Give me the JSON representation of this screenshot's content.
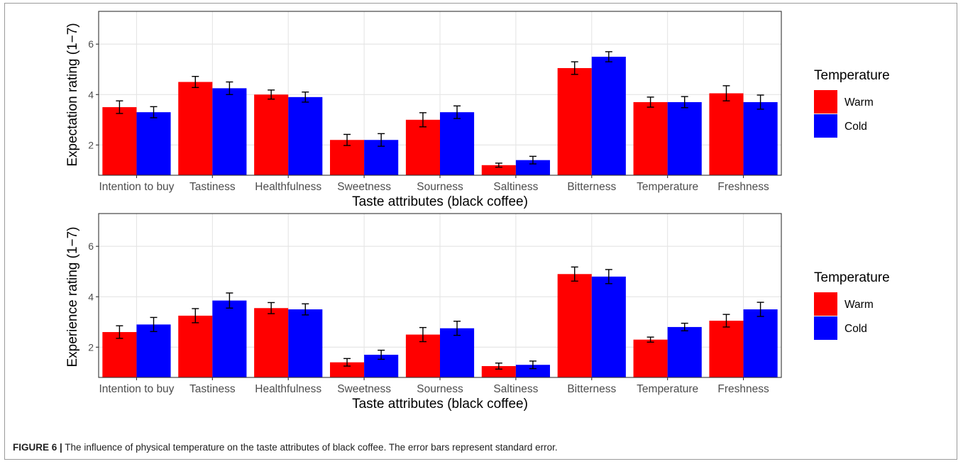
{
  "caption": {
    "label": "FIGURE 6 |",
    "text": " The influence of physical temperature on the taste attributes of black coffee. The error bars represent standard error."
  },
  "chart_data": [
    {
      "type": "bar",
      "categories": [
        "Intention to buy",
        "Tastiness",
        "Healthfulness",
        "Sweetness",
        "Sourness",
        "Saltiness",
        "Bitterness",
        "Temperature",
        "Freshness"
      ],
      "series": [
        {
          "name": "Warm",
          "color": "#ff0000",
          "values": [
            3.5,
            4.5,
            4.0,
            2.2,
            3.0,
            1.2,
            5.05,
            3.7,
            4.05
          ],
          "se": [
            0.25,
            0.22,
            0.18,
            0.22,
            0.28,
            0.08,
            0.25,
            0.2,
            0.3
          ]
        },
        {
          "name": "Cold",
          "color": "#0000ff",
          "values": [
            3.3,
            4.25,
            3.9,
            2.2,
            3.3,
            1.4,
            5.5,
            3.7,
            3.7
          ],
          "se": [
            0.22,
            0.25,
            0.2,
            0.25,
            0.25,
            0.15,
            0.2,
            0.22,
            0.28
          ]
        }
      ],
      "xlabel": "Taste attributes (black coffee)",
      "ylabel": "Expectation rating (1−7)",
      "yticks": [
        2,
        4,
        6
      ],
      "ylim": [
        0.8,
        7.3
      ],
      "legend_title": "Temperature",
      "legend_position": "right",
      "grid": true
    },
    {
      "type": "bar",
      "categories": [
        "Intention to buy",
        "Tastiness",
        "Healthfulness",
        "Sweetness",
        "Sourness",
        "Saltiness",
        "Bitterness",
        "Temperature",
        "Freshness"
      ],
      "series": [
        {
          "name": "Warm",
          "color": "#ff0000",
          "values": [
            2.6,
            3.25,
            3.55,
            1.4,
            2.5,
            1.25,
            4.9,
            2.3,
            3.05
          ],
          "se": [
            0.25,
            0.28,
            0.22,
            0.15,
            0.28,
            0.12,
            0.28,
            0.1,
            0.25
          ]
        },
        {
          "name": "Cold",
          "color": "#0000ff",
          "values": [
            2.9,
            3.85,
            3.5,
            1.7,
            2.75,
            1.3,
            4.8,
            2.8,
            3.5
          ],
          "se": [
            0.28,
            0.3,
            0.22,
            0.18,
            0.28,
            0.15,
            0.28,
            0.15,
            0.28
          ]
        }
      ],
      "xlabel": "Taste attributes (black coffee)",
      "ylabel": "Experience rating (1−7)",
      "yticks": [
        2,
        4,
        6
      ],
      "ylim": [
        0.8,
        7.3
      ],
      "legend_title": "Temperature",
      "legend_position": "right",
      "grid": true
    }
  ]
}
